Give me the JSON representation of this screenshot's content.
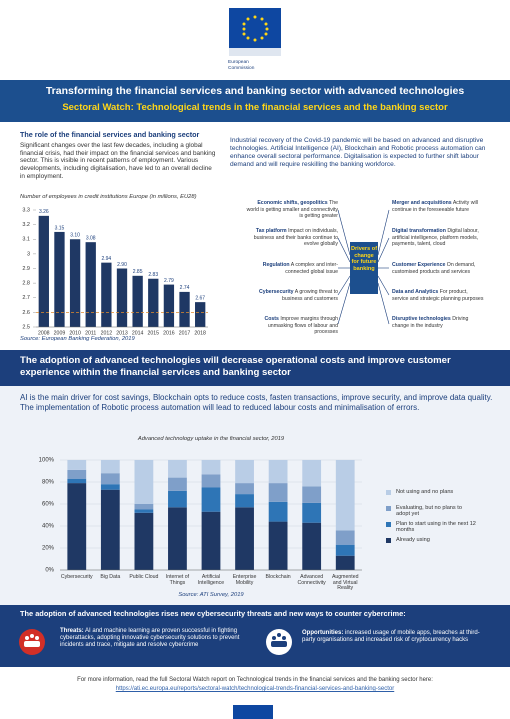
{
  "logo_lines": [
    "European",
    "Commission"
  ],
  "title": "Transforming the financial services and banking sector with advanced technologies",
  "subtitle": "Sectoral Watch: Technological trends in the financial services and the banking sector",
  "section1": {
    "heading": "The role of the financial services and banking sector",
    "body": "Significant changes over the last few decades, including a global financial crisis, had their impact on the financial services and banking sector. This is visible in recent patterns of employment. Various developments, including digitalisation, have led to an overall decline in employment.",
    "intro": "Industrial recovery of the Covid-19 pandemic will be based on advanced and disruptive technologies. Artificial Intelligence (AI), Blockchain and Robotic process automation can enhance overall sectoral performance. Digitalisation is expected to further shift labour demand and will require reskilling the banking workforce.",
    "drivers": {
      "center": "Drivers of change for future banking",
      "left": [
        {
          "label": "Economic shifts, geopolitics",
          "text": "The world is getting smaller and connectivity is getting greater"
        },
        {
          "label": "Tax platform",
          "text": "Impact on individuals, business and their banks continue to evolve globally"
        },
        {
          "label": "Regulation",
          "text": "A complex and inter-connected global issue"
        },
        {
          "label": "Cybersecurity",
          "text": "A growing threat to business and customers"
        },
        {
          "label": "Costs",
          "text": "Improve margins through unmasking flows of labour and processes"
        }
      ],
      "right": [
        {
          "label": "Merger and acquisitions",
          "text": "Activity will continue in the foreseeable future"
        },
        {
          "label": "Digital transformation",
          "text": "Digital labour, artificial intelligence, platform models, payments, talent, cloud"
        },
        {
          "label": "Customer Experience",
          "text": "On demand, customised products and services"
        },
        {
          "label": "Data and Analytics",
          "text": "For product, service and strategic planning purposes"
        },
        {
          "label": "Disruptive technologies",
          "text": "Driving change in the industry"
        }
      ]
    }
  },
  "section2": {
    "heading": "The adoption of advanced technologies will decrease operational costs and improve customer experience within the financial services and banking sector",
    "body": "AI is the main driver for cost savings, Blockchain opts to reduce costs, fasten transactions, improve security, and improve data quality. The implementation of Robotic process automation will lead to reduced labour costs and minimalisation of errors."
  },
  "section3": {
    "heading": "The adoption of advanced technologies rises new cybersecurity threats and new ways to counter cybercrime:",
    "threats": {
      "label": "Threats:",
      "text": "AI and machine learning are proven successful in fighting cyberattacks, adopting innovative cybersecurity solutions to prevent incidents and trace, mitigate and resolve cybercrime"
    },
    "opportunities": {
      "label": "Opportunities:",
      "text": "increased usage of mobile apps, breaches at third-party organisations and increased risk of cryptocurrency hacks"
    }
  },
  "footer": {
    "text": "For more information, read the full Sectoral Watch report on Technological trends in the financial services and the banking sector here:",
    "link": "https://ati.ec.europa.eu/reports/sectoral-watch/technological-trends-financial-services-and-banking-sector"
  },
  "chart_data": [
    {
      "type": "bar",
      "title": "Number of employees in credit institutions Europe (in millions, EU28)",
      "categories": [
        "2008",
        "2009",
        "2010",
        "2011",
        "2012",
        "2013",
        "2014",
        "2015",
        "2016",
        "2017",
        "2018"
      ],
      "values": [
        3.26,
        3.15,
        3.1,
        3.08,
        2.94,
        2.9,
        2.85,
        2.83,
        2.79,
        2.74,
        2.67
      ],
      "value_labels": [
        "3.26",
        "3.15",
        "3.10",
        "3.08",
        "2.94",
        "2.90",
        "2.85",
        "2.83",
        "2.79",
        "2.74",
        "2.67"
      ],
      "color": "#1f3864",
      "ylim": [
        2.5,
        3.3
      ],
      "yticks": [
        2.5,
        2.6,
        2.7,
        2.8,
        2.9,
        3,
        3.1,
        3.2,
        3.3
      ],
      "reference_line": 2.6,
      "reference_color": "#e08a2c",
      "source": "Source: European Banking Federation, 2019"
    },
    {
      "type": "stacked_bar",
      "title": "Advanced technology uptake in the financial sector, 2019",
      "categories": [
        "Cybersecurity",
        "Big Data",
        "Public Cloud",
        "Internet of Things",
        "Artificial Intelligence",
        "Enterprise Mobility",
        "Blockchain",
        "Advanced Connectivity",
        "Augmented and Virtual Reality"
      ],
      "series": [
        {
          "name": "Already using",
          "color": "#1f3864",
          "values": [
            79,
            73,
            52,
            57,
            53,
            57,
            44,
            43,
            13
          ]
        },
        {
          "name": "Plan to start using in the next 12 months",
          "color": "#2e75b6",
          "values": [
            4,
            5,
            3,
            15,
            22,
            12,
            18,
            18,
            10
          ]
        },
        {
          "name": "Evaluating, but no plans to adopt yet",
          "color": "#7f9fc9",
          "values": [
            8,
            10,
            5,
            12,
            12,
            10,
            17,
            15,
            13
          ]
        },
        {
          "name": "Not using and no plans",
          "color": "#b9cde6",
          "values": [
            9,
            12,
            40,
            16,
            13,
            21,
            21,
            24,
            64
          ]
        }
      ],
      "ylim": [
        0,
        100
      ],
      "yticks": [
        {
          "value": 0,
          "label": "0%"
        },
        {
          "value": 20,
          "label": "20%"
        },
        {
          "value": 40,
          "label": "40%"
        },
        {
          "value": 60,
          "label": "60%"
        },
        {
          "value": 80,
          "label": "80%"
        },
        {
          "value": 100,
          "label": "100%"
        }
      ],
      "grid": true,
      "legend": "right",
      "source": "Source: ATI Survey, 2019"
    }
  ]
}
